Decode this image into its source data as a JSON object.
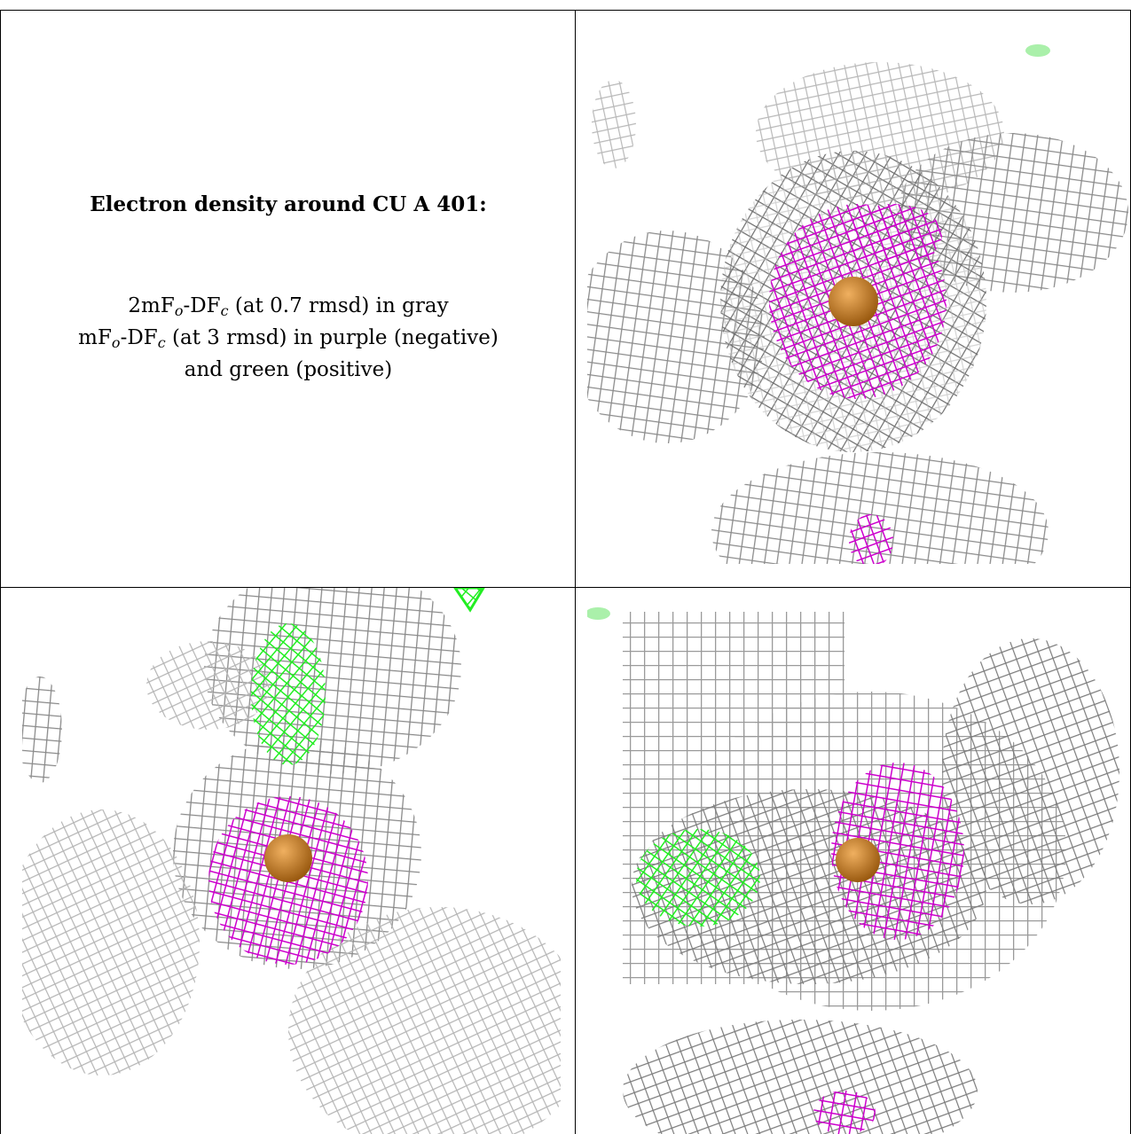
{
  "caption": {
    "title": "Electron density around CU A 401:",
    "line1": {
      "pre": "2mF",
      "sub1": "o",
      "mid": "-DF",
      "sub2": "c",
      "post": " (at 0.7 rmsd) in gray"
    },
    "line2": {
      "pre": "mF",
      "sub1": "o",
      "mid": "-DF",
      "sub2": "c",
      "post": " (at 3 rmsd) in purple (negative)"
    },
    "line3": "and green (positive)"
  },
  "colors": {
    "mesh_gray": "#9a9a9a",
    "mesh_dark": "#5a5a5a",
    "negative_purple": "#d400d4",
    "positive_green": "#22ee22",
    "copper": "#c07820"
  },
  "panels": [
    "density-view-top-right",
    "density-view-bottom-left",
    "density-view-bottom-right"
  ]
}
